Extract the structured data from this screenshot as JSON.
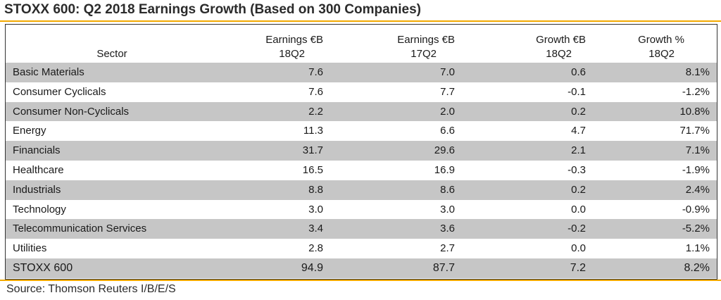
{
  "title": "STOXX 600: Q2 2018 Earnings Growth (Based on 300 Companies)",
  "headers": [
    {
      "line1": "",
      "line2": "Sector"
    },
    {
      "line1": "Earnings €B",
      "line2": "18Q2"
    },
    {
      "line1": "Earnings €B",
      "line2": "17Q2"
    },
    {
      "line1": "Growth €B",
      "line2": "18Q2"
    },
    {
      "line1": "Growth %",
      "line2": "18Q2"
    }
  ],
  "rows": [
    {
      "sector": "Basic Materials",
      "earn18": "7.6",
      "earn17": "7.0",
      "growth_eur": "0.6",
      "growth_pct": "8.1%"
    },
    {
      "sector": "Consumer Cyclicals",
      "earn18": "7.6",
      "earn17": "7.7",
      "growth_eur": "-0.1",
      "growth_pct": "-1.2%"
    },
    {
      "sector": "Consumer Non-Cyclicals",
      "earn18": "2.2",
      "earn17": "2.0",
      "growth_eur": "0.2",
      "growth_pct": "10.8%"
    },
    {
      "sector": "Energy",
      "earn18": "11.3",
      "earn17": "6.6",
      "growth_eur": "4.7",
      "growth_pct": "71.7%"
    },
    {
      "sector": "Financials",
      "earn18": "31.7",
      "earn17": "29.6",
      "growth_eur": "2.1",
      "growth_pct": "7.1%"
    },
    {
      "sector": "Healthcare",
      "earn18": "16.5",
      "earn17": "16.9",
      "growth_eur": "-0.3",
      "growth_pct": "-1.9%"
    },
    {
      "sector": "Industrials",
      "earn18": "8.8",
      "earn17": "8.6",
      "growth_eur": "0.2",
      "growth_pct": "2.4%"
    },
    {
      "sector": "Technology",
      "earn18": "3.0",
      "earn17": "3.0",
      "growth_eur": "0.0",
      "growth_pct": "-0.9%"
    },
    {
      "sector": "Telecommunication Services",
      "earn18": "3.4",
      "earn17": "3.6",
      "growth_eur": "-0.2",
      "growth_pct": "-5.2%"
    },
    {
      "sector": "Utilities",
      "earn18": "2.8",
      "earn17": "2.7",
      "growth_eur": "0.0",
      "growth_pct": "1.1%"
    }
  ],
  "total": {
    "sector": "STOXX 600",
    "earn18": "94.9",
    "earn17": "87.7",
    "growth_eur": "7.2",
    "growth_pct": "8.2%"
  },
  "source": "Source: Thomson Reuters I/B/E/S",
  "colors": {
    "accent_rule": "#f2a900",
    "row_shade": "#c6c6c6",
    "border": "#333333"
  }
}
